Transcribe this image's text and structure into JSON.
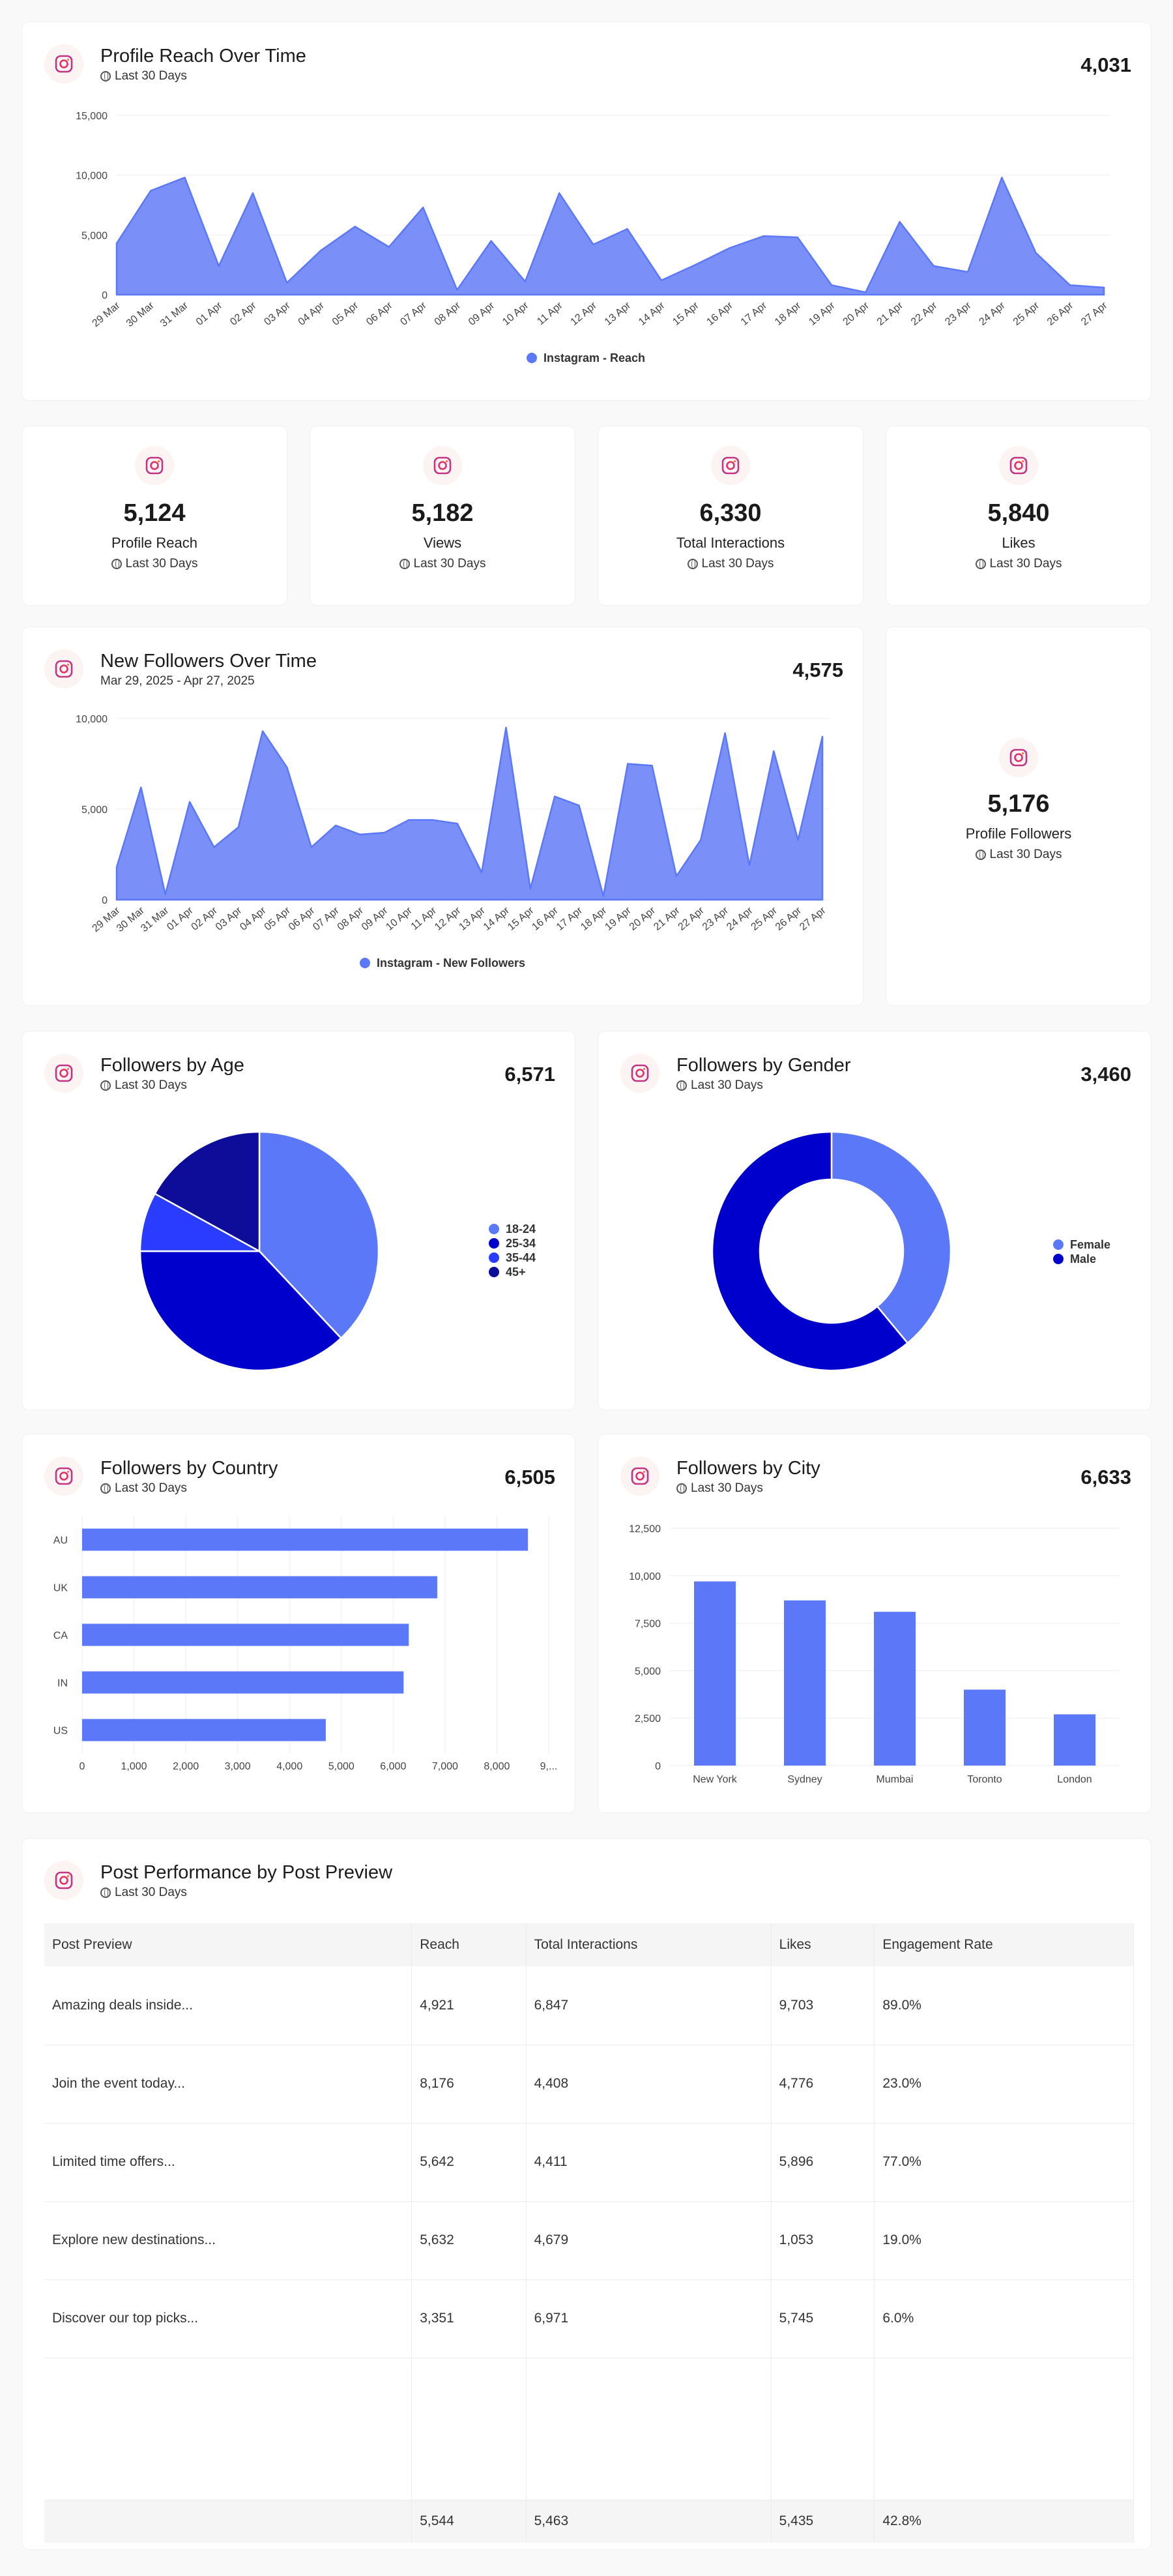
{
  "subtitle_default": "Last 30 Days",
  "reach": {
    "title": "Profile Reach Over Time",
    "subtitle": "Last 30 Days",
    "total": "4,031",
    "legend": "Instagram - Reach"
  },
  "kpis": [
    {
      "value": "5,124",
      "label": "Profile Reach",
      "sub": "Last 30 Days"
    },
    {
      "value": "5,182",
      "label": "Views",
      "sub": "Last 30 Days"
    },
    {
      "value": "6,330",
      "label": "Total Interactions",
      "sub": "Last 30 Days"
    },
    {
      "value": "5,840",
      "label": "Likes",
      "sub": "Last 30 Days"
    }
  ],
  "followers_time": {
    "title": "New Followers Over Time",
    "subtitle": "Mar 29, 2025 - Apr 27, 2025",
    "total": "4,575",
    "legend": "Instagram - New Followers"
  },
  "profile_followers": {
    "value": "5,176",
    "label": "Profile Followers",
    "sub": "Last 30 Days"
  },
  "age": {
    "title": "Followers by Age",
    "subtitle": "Last 30 Days",
    "total": "6,571"
  },
  "gender": {
    "title": "Followers by Gender",
    "subtitle": "Last 30 Days",
    "total": "3,460"
  },
  "country": {
    "title": "Followers by Country",
    "subtitle": "Last 30 Days",
    "total": "6,505"
  },
  "city": {
    "title": "Followers by City",
    "subtitle": "Last 30 Days",
    "total": "6,633"
  },
  "posts": {
    "title": "Post Performance by Post Preview",
    "subtitle": "Last 30 Days",
    "columns": [
      "Post Preview",
      "Reach",
      "Total Interactions",
      "Likes",
      "Engagement Rate"
    ],
    "rows": [
      [
        "Amazing deals inside...",
        "4,921",
        "6,847",
        "9,703",
        "89.0%"
      ],
      [
        "Join the event today...",
        "8,176",
        "4,408",
        "4,776",
        "23.0%"
      ],
      [
        "Limited time offers...",
        "5,642",
        "4,411",
        "5,896",
        "77.0%"
      ],
      [
        "Explore new destinations...",
        "5,632",
        "4,679",
        "1,053",
        "19.0%"
      ],
      [
        "Discover our top picks...",
        "3,351",
        "6,971",
        "5,745",
        "6.0%"
      ]
    ],
    "totals": [
      "",
      "5,544",
      "5,463",
      "5,435",
      "42.8%"
    ]
  },
  "colors": {
    "primary": "#5b78f8",
    "area": "#7b8ff8",
    "navy1": "#0000cc",
    "navy2": "#2a3cff",
    "navy3": "#0d0d9a"
  },
  "chart_data": [
    {
      "id": "reach",
      "type": "area",
      "title": "Profile Reach Over Time",
      "x": [
        "29 Mar",
        "30 Mar",
        "31 Mar",
        "01 Apr",
        "02 Apr",
        "03 Apr",
        "04 Apr",
        "05 Apr",
        "06 Apr",
        "07 Apr",
        "08 Apr",
        "09 Apr",
        "10 Apr",
        "11 Apr",
        "12 Apr",
        "13 Apr",
        "14 Apr",
        "15 Apr",
        "16 Apr",
        "17 Apr",
        "18 Apr",
        "19 Apr",
        "20 Apr",
        "21 Apr",
        "22 Apr",
        "23 Apr",
        "24 Apr",
        "25 Apr",
        "26 Apr",
        "27 Apr"
      ],
      "series": [
        {
          "name": "Instagram - Reach",
          "values": [
            4300,
            8700,
            9800,
            2400,
            8500,
            1000,
            3700,
            5700,
            4000,
            7300,
            400,
            4500,
            1100,
            8500,
            4200,
            5500,
            1200,
            2500,
            3900,
            4900,
            4800,
            800,
            200,
            6100,
            2400,
            1900,
            9800,
            3500,
            800,
            600
          ]
        }
      ],
      "ylim": [
        0,
        15000
      ],
      "yticks": [
        "0",
        "5,000",
        "10,000",
        "15,000"
      ]
    },
    {
      "id": "followers",
      "type": "area",
      "title": "New Followers Over Time",
      "x": [
        "29 Mar",
        "30 Mar",
        "31 Mar",
        "01 Apr",
        "02 Apr",
        "03 Apr",
        "04 Apr",
        "05 Apr",
        "06 Apr",
        "07 Apr",
        "08 Apr",
        "09 Apr",
        "10 Apr",
        "11 Apr",
        "12 Apr",
        "13 Apr",
        "14 Apr",
        "15 Apr",
        "16 Apr",
        "17 Apr",
        "18 Apr",
        "19 Apr",
        "20 Apr",
        "21 Apr",
        "22 Apr",
        "23 Apr",
        "24 Apr",
        "25 Apr",
        "26 Apr",
        "27 Apr"
      ],
      "series": [
        {
          "name": "Instagram - New Followers",
          "values": [
            1800,
            6200,
            300,
            5400,
            2900,
            4000,
            9300,
            7300,
            2900,
            4100,
            3600,
            3700,
            4400,
            4400,
            4200,
            1500,
            9500,
            600,
            5700,
            5200,
            200,
            7500,
            7400,
            1300,
            3300,
            9200,
            1900,
            8200,
            3300,
            9000
          ]
        }
      ],
      "ylim": [
        0,
        10000
      ],
      "yticks": [
        "0",
        "5,000",
        "10,000"
      ]
    },
    {
      "id": "age",
      "type": "pie",
      "title": "Followers by Age",
      "categories": [
        "18-24",
        "25-34",
        "35-44",
        "45+"
      ],
      "values": [
        38,
        37,
        8,
        17
      ],
      "colors": [
        "#5b78f8",
        "#0000cc",
        "#2a3cff",
        "#0d0d9a"
      ]
    },
    {
      "id": "gender",
      "type": "pie",
      "title": "Followers by Gender",
      "categories": [
        "Female",
        "Male"
      ],
      "values": [
        39,
        61
      ],
      "colors": [
        "#5b78f8",
        "#0000cc"
      ]
    },
    {
      "id": "country",
      "type": "bar",
      "title": "Followers by Country",
      "categories": [
        "AU",
        "UK",
        "CA",
        "IN",
        "US"
      ],
      "values": [
        8600,
        6850,
        6300,
        6200,
        4700
      ],
      "xlim": [
        0,
        9000
      ],
      "xticks": [
        "0",
        "1,000",
        "2,000",
        "3,000",
        "4,000",
        "5,000",
        "6,000",
        "7,000",
        "8,000",
        "9,..."
      ]
    },
    {
      "id": "city",
      "type": "bar",
      "title": "Followers by City",
      "categories": [
        "New York",
        "Sydney",
        "Mumbai",
        "Toronto",
        "London"
      ],
      "values": [
        9700,
        8700,
        8100,
        4000,
        2700
      ],
      "ylim": [
        0,
        12500
      ],
      "yticks": [
        "0",
        "2,500",
        "5,000",
        "7,500",
        "10,000",
        "12,500"
      ]
    }
  ]
}
